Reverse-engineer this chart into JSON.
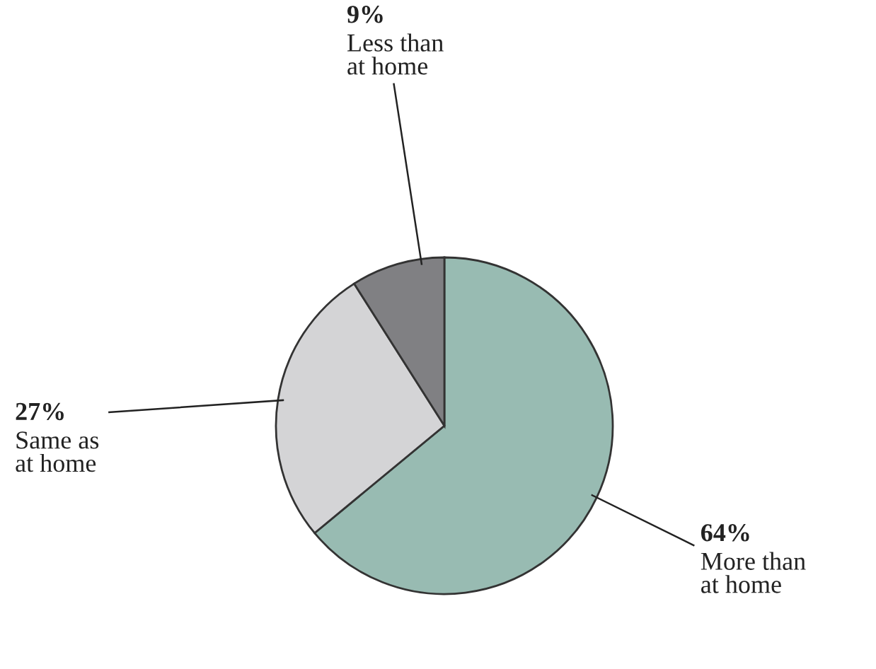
{
  "chart_data": {
    "type": "pie",
    "categories": [
      "More than\nat home",
      "Same as\nat home",
      "Less than\nat home"
    ],
    "values": [
      64,
      27,
      9
    ],
    "colors": [
      "#98bbb2",
      "#d4d4d6",
      "#808083"
    ],
    "value_labels": [
      "64%",
      "27%",
      "9%"
    ]
  }
}
